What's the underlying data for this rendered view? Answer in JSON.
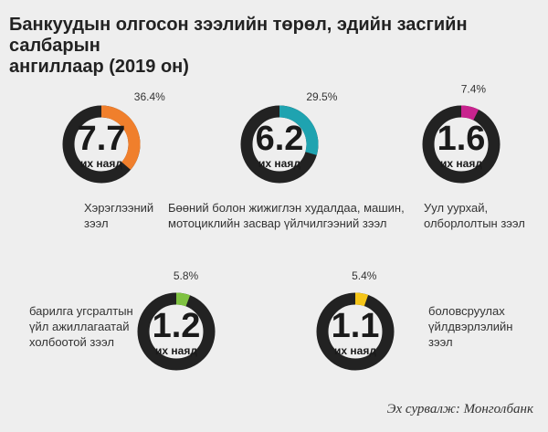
{
  "page": {
    "title_line1": "Банкуудын олгосон зээлийн төрөл, эдийн засгийн салбарын",
    "title_line2": "ангиллаар (2019 он)",
    "source": "Эх сурвалж: Монголбанк"
  },
  "colors": {
    "ring": "#222222",
    "background": "#eeeeee",
    "text": "#222222"
  },
  "chart_data": [
    {
      "type": "pie",
      "value": "7.7",
      "unit": "их наяд",
      "share_percent": 36.4,
      "share_label": "36.4%",
      "color": "#f07f2c",
      "caption": [
        "Хэрэглээний",
        "зээл"
      ]
    },
    {
      "type": "pie",
      "value": "6.2",
      "unit": "их наяд",
      "share_percent": 29.5,
      "share_label": "29.5%",
      "color": "#1fa3b0",
      "caption": [
        "Бөөний болон жижиглэн худалдаа, машин,",
        "мотоциклийн засвар үйлчилгээний зээл"
      ]
    },
    {
      "type": "pie",
      "value": "1.6",
      "unit": "их наяд",
      "share_percent": 7.4,
      "share_label": "7.4%",
      "color": "#c8238e",
      "caption": [
        "Уул уурхай,",
        "олборлолтын зээл"
      ]
    },
    {
      "type": "pie",
      "value": "1.2",
      "unit": "их наяд",
      "share_percent": 5.8,
      "share_label": "5.8%",
      "color": "#7fc241",
      "caption": [
        "барилга угсралтын",
        "үйл ажиллагаатай",
        "холбоотой зээл"
      ]
    },
    {
      "type": "pie",
      "value": "1.1",
      "unit": "их наяд",
      "share_percent": 5.4,
      "share_label": "5.4%",
      "color": "#f5c518",
      "caption": [
        "боловсруулах",
        "үйлдвэрлэлийн",
        "зээл"
      ]
    }
  ]
}
